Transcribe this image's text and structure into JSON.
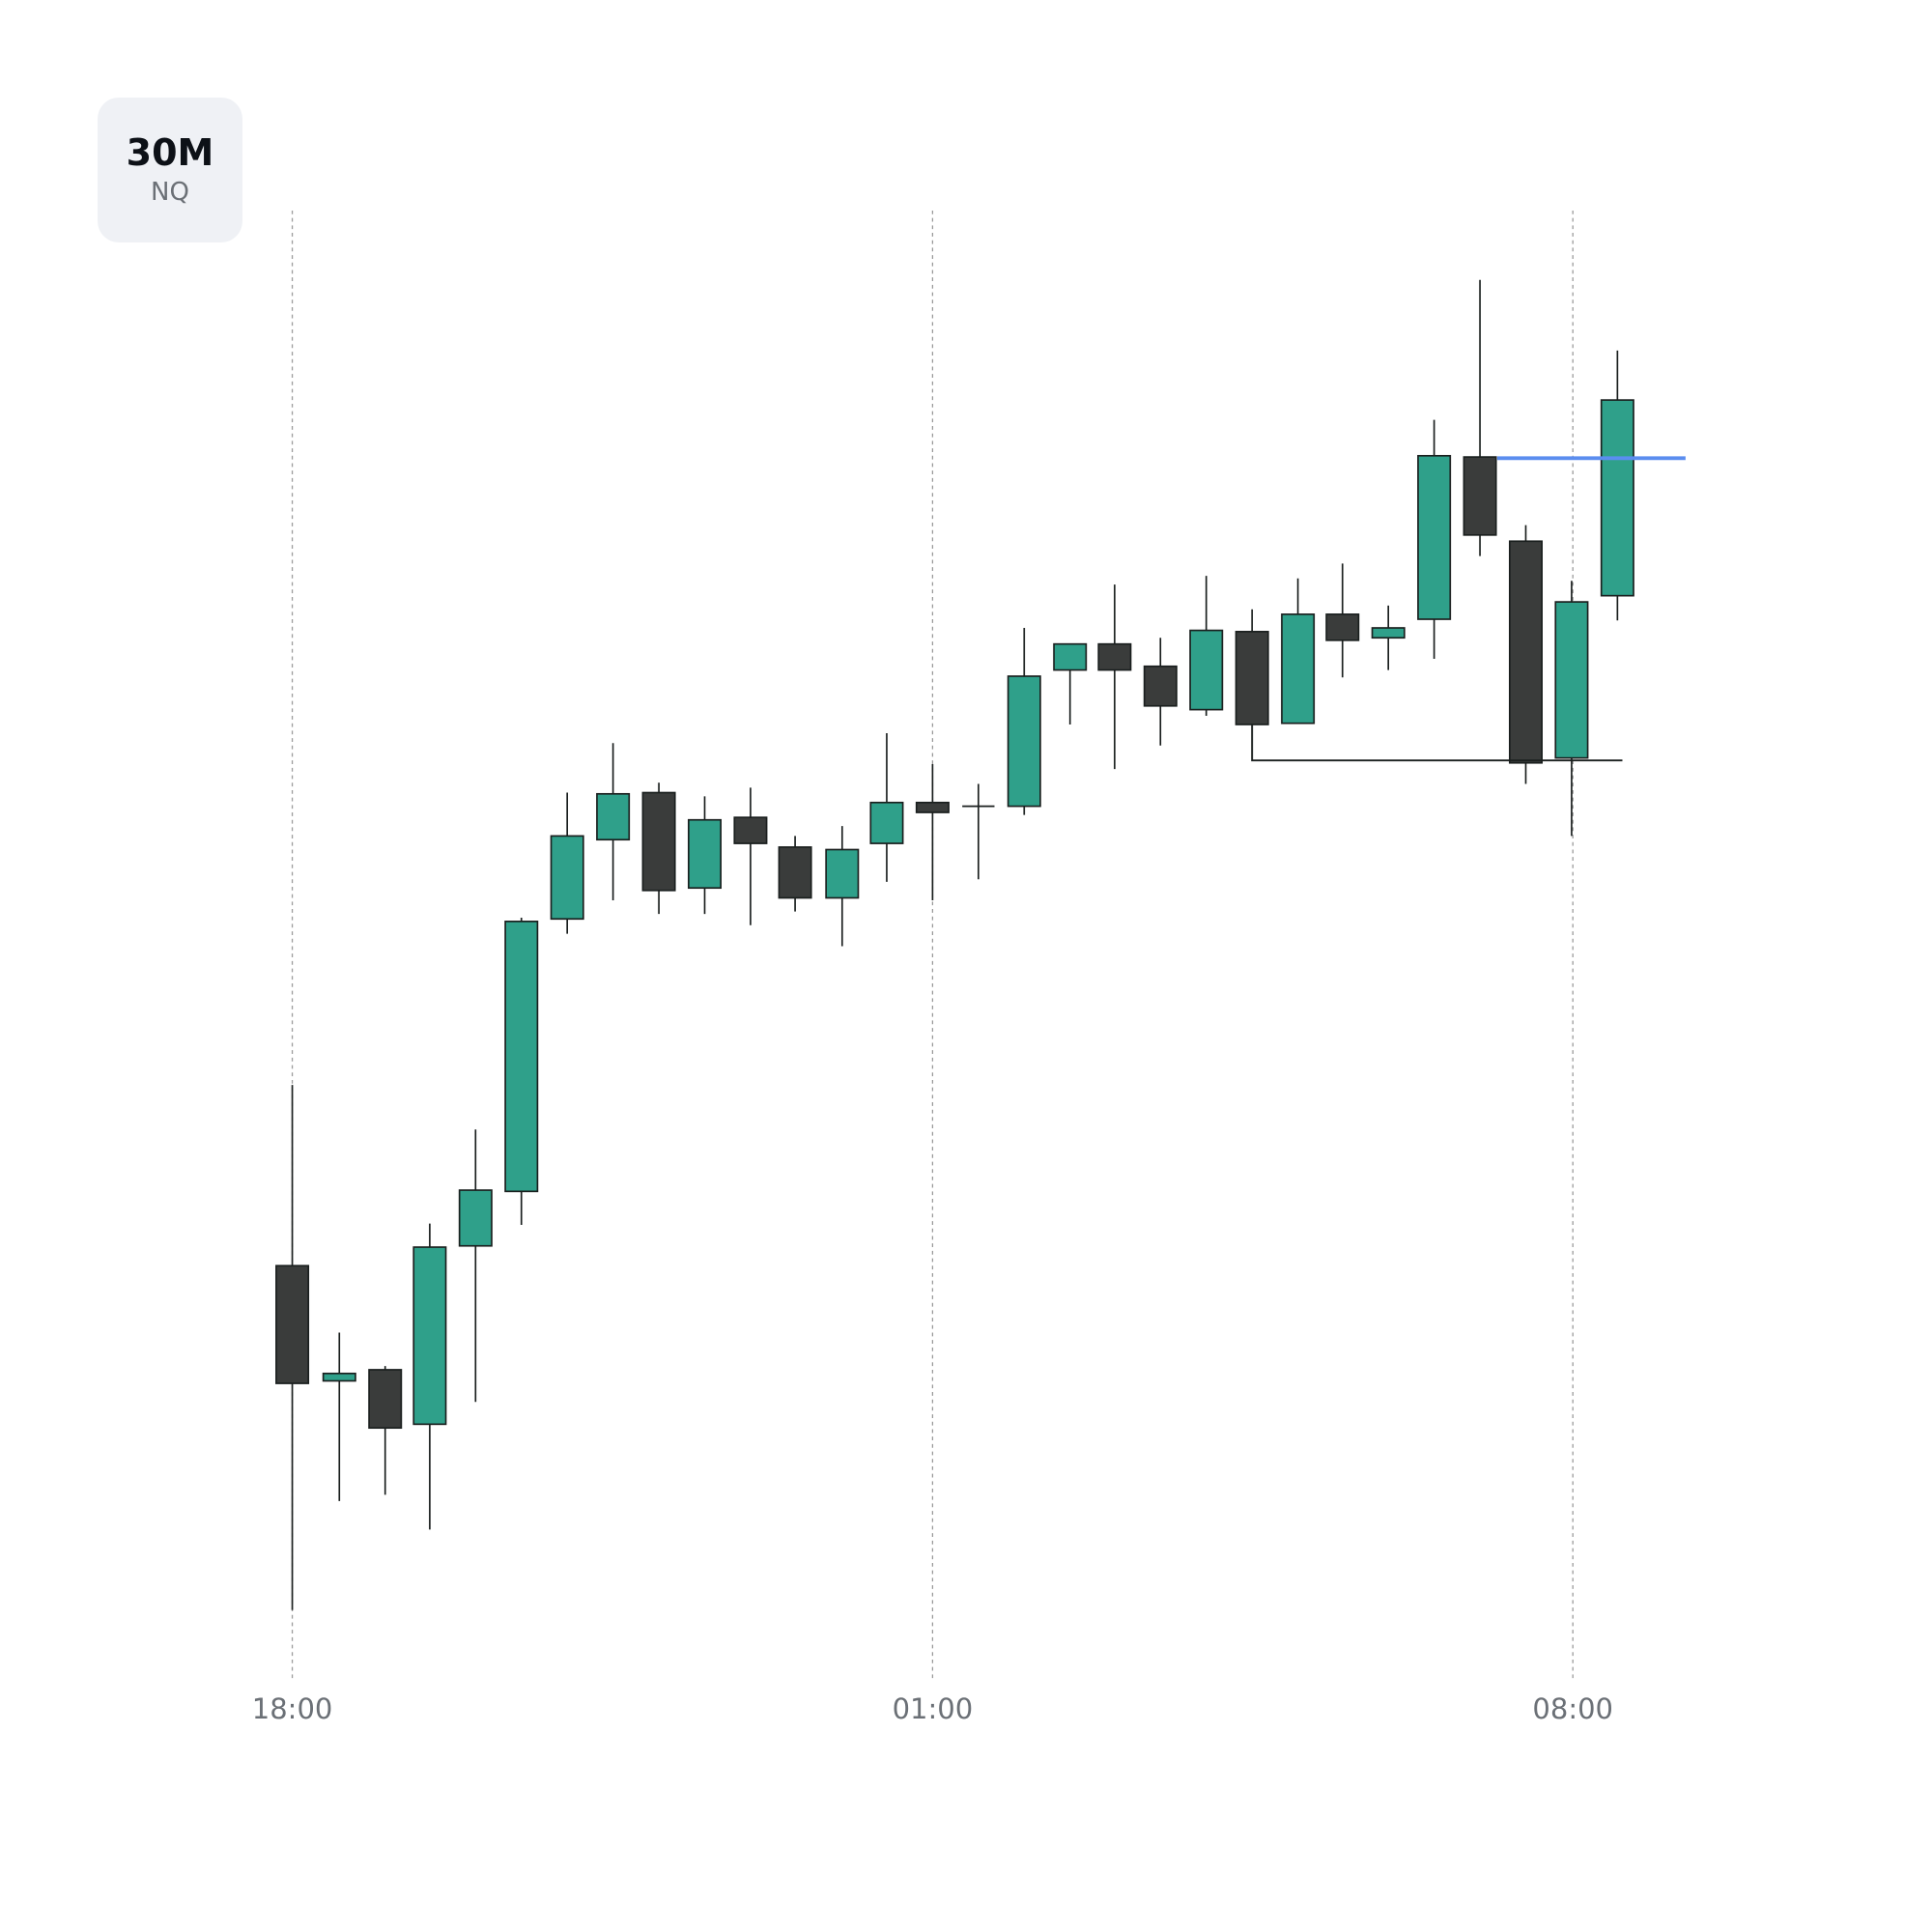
{
  "badge": {
    "timeframe": "30M",
    "symbol": "NQ"
  },
  "colors": {
    "up": "#2fa08a",
    "down": "#3a3c3b",
    "outline": "#1a1f1e",
    "level_line": "#5b8def",
    "range_line": "#1a1f1e",
    "grid": "#9a9a9a",
    "axis_text": "#6b7076"
  },
  "chart_data": {
    "type": "candlestick",
    "title": "NQ 30M",
    "xlabel": "",
    "ylabel": "",
    "x_ticks": [
      {
        "label": "18:00",
        "x": 236
      },
      {
        "label": "01:00",
        "x": 753
      },
      {
        "label": "08:00",
        "x": 1270
      }
    ],
    "grid": {
      "vertical": true,
      "style": "dotted"
    },
    "note": "Prices in pixel-space (y, smaller = higher). No price axis shown.",
    "candles": [
      {
        "x": 236,
        "high": 876,
        "top": 1022,
        "bottom": 1117,
        "low": 1300,
        "dir": "down"
      },
      {
        "x": 274,
        "high": 1076,
        "top": 1109,
        "bottom": 1115,
        "low": 1212,
        "dir": "up"
      },
      {
        "x": 311,
        "high": 1103,
        "top": 1106,
        "bottom": 1153,
        "low": 1207,
        "dir": "down"
      },
      {
        "x": 347,
        "high": 988,
        "top": 1007,
        "bottom": 1150,
        "low": 1235,
        "dir": "up"
      },
      {
        "x": 384,
        "high": 912,
        "top": 961,
        "bottom": 1006,
        "low": 1132,
        "dir": "up"
      },
      {
        "x": 421,
        "high": 741,
        "top": 744,
        "bottom": 962,
        "low": 989,
        "dir": "up"
      },
      {
        "x": 458,
        "high": 640,
        "top": 675,
        "bottom": 742,
        "low": 754,
        "dir": "up"
      },
      {
        "x": 495,
        "high": 600,
        "top": 641,
        "bottom": 678,
        "low": 727,
        "dir": "up"
      },
      {
        "x": 532,
        "high": 632,
        "top": 640,
        "bottom": 719,
        "low": 738,
        "dir": "down"
      },
      {
        "x": 569,
        "high": 643,
        "top": 662,
        "bottom": 717,
        "low": 738,
        "dir": "up"
      },
      {
        "x": 606,
        "high": 636,
        "top": 660,
        "bottom": 681,
        "low": 747,
        "dir": "down"
      },
      {
        "x": 642,
        "high": 675,
        "top": 684,
        "bottom": 725,
        "low": 736,
        "dir": "down"
      },
      {
        "x": 680,
        "high": 667,
        "top": 686,
        "bottom": 725,
        "low": 764,
        "dir": "up"
      },
      {
        "x": 716,
        "high": 592,
        "top": 648,
        "bottom": 681,
        "low": 712,
        "dir": "up"
      },
      {
        "x": 753,
        "high": 617,
        "top": 648,
        "bottom": 656,
        "low": 727,
        "dir": "down"
      },
      {
        "x": 790,
        "high": 633,
        "top": 651,
        "bottom": 652,
        "low": 710,
        "dir": "doji"
      },
      {
        "x": 827,
        "high": 507,
        "top": 546,
        "bottom": 651,
        "low": 658,
        "dir": "up"
      },
      {
        "x": 864,
        "high": 520,
        "top": 520,
        "bottom": 541,
        "low": 585,
        "dir": "up"
      },
      {
        "x": 900,
        "high": 472,
        "top": 520,
        "bottom": 541,
        "low": 621,
        "dir": "down"
      },
      {
        "x": 937,
        "high": 515,
        "top": 538,
        "bottom": 570,
        "low": 602,
        "dir": "down"
      },
      {
        "x": 974,
        "high": 465,
        "top": 509,
        "bottom": 573,
        "low": 578,
        "dir": "up"
      },
      {
        "x": 1011,
        "high": 492,
        "top": 510,
        "bottom": 585,
        "low": 585,
        "dir": "down"
      },
      {
        "x": 1048,
        "high": 467,
        "top": 496,
        "bottom": 584,
        "low": 584,
        "dir": "up"
      },
      {
        "x": 1084,
        "high": 455,
        "top": 496,
        "bottom": 517,
        "low": 547,
        "dir": "down"
      },
      {
        "x": 1121,
        "high": 489,
        "top": 507,
        "bottom": 515,
        "low": 541,
        "dir": "up"
      },
      {
        "x": 1158,
        "high": 339,
        "top": 368,
        "bottom": 500,
        "low": 532,
        "dir": "up"
      },
      {
        "x": 1195,
        "high": 226,
        "top": 369,
        "bottom": 432,
        "low": 449,
        "dir": "down"
      },
      {
        "x": 1232,
        "high": 424,
        "top": 437,
        "bottom": 616,
        "low": 633,
        "dir": "down"
      },
      {
        "x": 1269,
        "high": 469,
        "top": 486,
        "bottom": 612,
        "low": 675,
        "dir": "up"
      },
      {
        "x": 1306,
        "high": 283,
        "top": 323,
        "bottom": 481,
        "low": 501,
        "dir": "up"
      }
    ],
    "annotations": [
      {
        "type": "horizontal_level",
        "color": "#5b8def",
        "y": 370,
        "x_start": 1209,
        "x_end": 1361
      },
      {
        "type": "range_low_line",
        "color": "#1a1f1e",
        "points": [
          [
            1011,
            585
          ],
          [
            1011,
            614
          ],
          [
            1310,
            614
          ]
        ]
      }
    ]
  }
}
